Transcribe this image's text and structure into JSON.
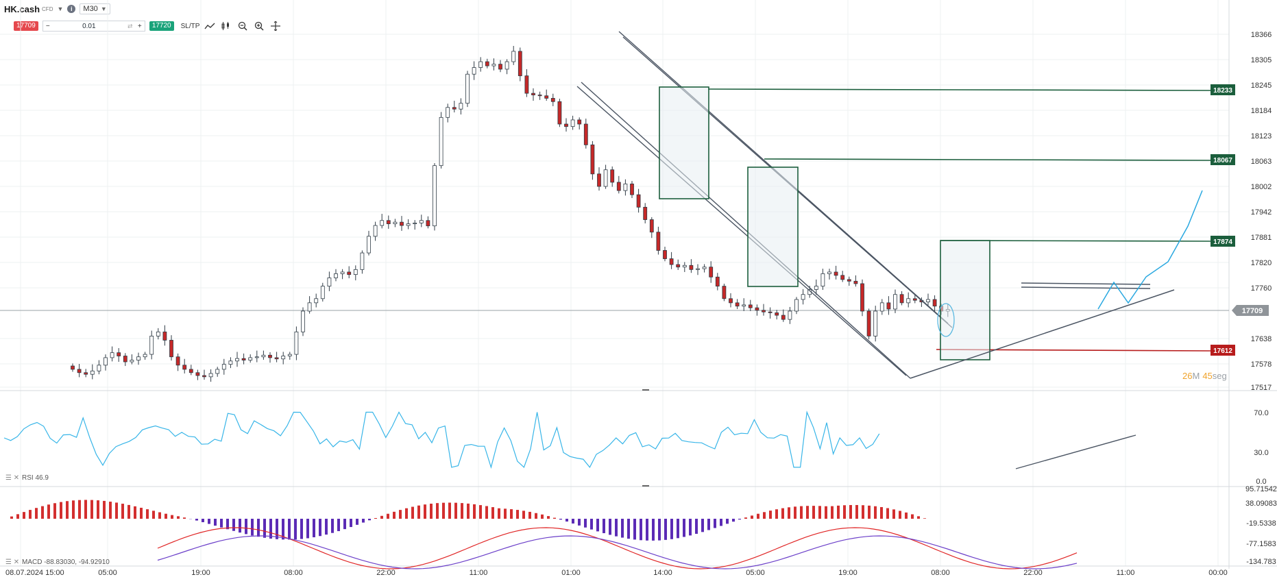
{
  "header": {
    "symbol": "HK.cash",
    "symbol_type": "CFD",
    "timeframe": "M30",
    "info_icon": "info-icon"
  },
  "trade_bar": {
    "sell_price": "17709",
    "buy_price": "17720",
    "quantity": "0.01",
    "sltp_label": "SL/TP",
    "tools": [
      "line-chart-icon",
      "candles-icon",
      "zoom-out-icon",
      "zoom-in-icon",
      "crosshair-icon"
    ]
  },
  "price_axis": {
    "labels": [
      "18366",
      "18305",
      "18245",
      "18184",
      "18123",
      "18063",
      "18002",
      "17942",
      "17881",
      "17820",
      "17760",
      "17638",
      "17578",
      "17517"
    ],
    "current_price": "17709",
    "levels": [
      {
        "value": "18233",
        "color": "#1b5e3c"
      },
      {
        "value": "18067",
        "color": "#1b5e3c"
      },
      {
        "value": "17874",
        "color": "#1b5e3c"
      },
      {
        "value": "17612",
        "color": "#b71c1c"
      }
    ]
  },
  "countdown": {
    "minutes": "26",
    "minutes_unit": "M",
    "seconds": "45",
    "seconds_unit": "seg"
  },
  "time_axis": [
    "08.07.2024 15:00",
    "05:00",
    "19:00",
    "08:00",
    "22:00",
    "11:00",
    "01:00",
    "14:00",
    "05:00",
    "19:00",
    "08:00",
    "22:00",
    "11:00",
    "00:00"
  ],
  "rsi": {
    "label": "RSI 46.9",
    "axis": [
      "70.0",
      "30.0",
      "0.0"
    ]
  },
  "macd": {
    "label": "MACD -88.83030, -94.92910",
    "axis": [
      "95.71542",
      "38.09083",
      "-19.5338",
      "-77.1583",
      "-134.783"
    ]
  },
  "chart_data": {
    "type": "candlestick",
    "symbol": "HK.cash",
    "timeframe": "M30",
    "y_range": [
      17517,
      18366
    ],
    "current_price": 17709,
    "horizontal_levels": [
      18233,
      18067,
      17874,
      17612
    ],
    "path_closes": [
      17560,
      17552,
      17548,
      17556,
      17570,
      17588,
      17600,
      17592,
      17578,
      17582,
      17590,
      17596,
      17640,
      17650,
      17630,
      17590,
      17570,
      17560,
      17552,
      17545,
      17542,
      17550,
      17560,
      17572,
      17580,
      17586,
      17582,
      17588,
      17590,
      17594,
      17588,
      17585,
      17592,
      17596,
      17650,
      17700,
      17720,
      17730,
      17760,
      17780,
      17790,
      17794,
      17788,
      17800,
      17840,
      17880,
      17906,
      17918,
      17910,
      17914,
      17906,
      17910,
      17912,
      17918,
      17905,
      18050,
      18166,
      18190,
      18186,
      18200,
      18270,
      18286,
      18300,
      18290,
      18294,
      18282,
      18300,
      18325,
      18266,
      18224,
      18220,
      18218,
      18212,
      18204,
      18150,
      18144,
      18160,
      18150,
      18100,
      18030,
      18000,
      18040,
      18010,
      17990,
      18006,
      17980,
      17950,
      17920,
      17890,
      17846,
      17826,
      17812,
      17806,
      17810,
      17800,
      17802,
      17806,
      17782,
      17760,
      17730,
      17720,
      17712,
      17715,
      17708,
      17702,
      17698,
      17696,
      17690,
      17680,
      17700,
      17728,
      17740,
      17752,
      17760,
      17790,
      17794,
      17786,
      17776,
      17772,
      17766,
      17700,
      17640,
      17700,
      17720,
      17705,
      17740,
      17720,
      17730,
      17726,
      17722,
      17728,
      17712,
      17700,
      17704
    ]
  }
}
